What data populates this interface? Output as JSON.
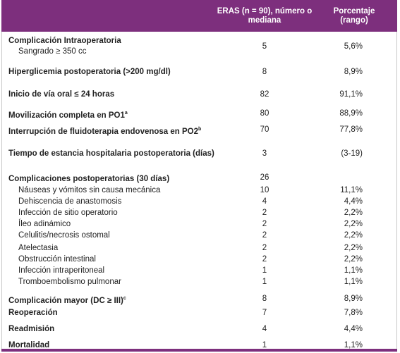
{
  "header": {
    "columns": [
      "ERAS (n = 90), número o mediana",
      "Porcentaje (rango)"
    ]
  },
  "table": {
    "rows": [
      {
        "label": "Complicación Intraoperatoria"
      },
      {
        "label": "Sangrado ≥ 350 cc",
        "eras": 5,
        "percent": "5,6%"
      },
      {
        "label": "Hiperglicemia postoperatoria (>200 mg/dl)",
        "eras": 8,
        "percent": "8,9%"
      },
      {
        "label": "Inicio de vía oral ≤ 24 horas",
        "eras": 82,
        "percent": "91,1%"
      },
      {
        "label": "Movilización completa en PO1",
        "sup": "a",
        "eras": 80,
        "percent": "88,9%"
      },
      {
        "label": "Interrupción de fluidoterapia endovenosa en PO2",
        "sup": "b",
        "eras": 70,
        "percent": "77,8%"
      },
      {
        "label": "Tiempo de estancia hospitalaria postoperatoria (días)",
        "eras": 3,
        "percent": "(3-19)"
      },
      {
        "label": "Complicaciones postoperatorias (30 días)",
        "eras": 26
      },
      {
        "label": "Náuseas y vómitos sin causa mecánica",
        "eras": 10,
        "percent": "11,1%"
      },
      {
        "label": "Dehiscencia de anastomosis",
        "eras": 4,
        "percent": "4,4%"
      },
      {
        "label": "Infección de sitio operatorio",
        "eras": 2,
        "percent": "2,2%"
      },
      {
        "label": "Íleo adinámico",
        "eras": 2,
        "percent": "2,2%"
      },
      {
        "label": "Celulitis/necrosis ostomal",
        "eras": 2,
        "percent": "2,2%"
      },
      {
        "label": "Atelectasia",
        "eras": 2,
        "percent": "2,2%"
      },
      {
        "label": "Obstrucción intestinal",
        "eras": 2,
        "percent": "2,2%"
      },
      {
        "label": "Infección intraperitoneal",
        "eras": 1,
        "percent": "1,1%"
      },
      {
        "label": "Tromboembolismo pulmonar",
        "eras": 1,
        "percent": "1,1%"
      },
      {
        "label": "Complicación mayor (DC ≥ III)",
        "sup": "c",
        "eras": 8,
        "percent": "8,9%"
      },
      {
        "label": "Reoperación",
        "eras": 7,
        "percent": "7,8%"
      },
      {
        "label": "Readmisión",
        "eras": 4,
        "percent": "4,4%"
      },
      {
        "label": "Mortalidad",
        "eras": 1,
        "percent": "1,1%"
      }
    ]
  }
}
